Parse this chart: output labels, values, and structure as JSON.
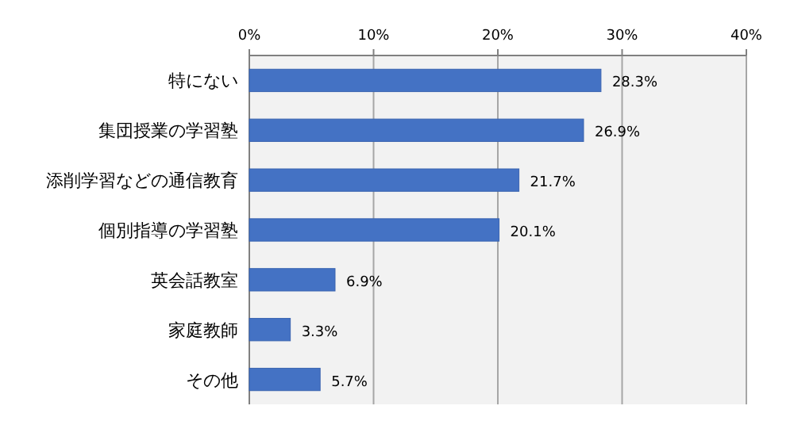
{
  "chart_data": {
    "type": "bar",
    "orientation": "horizontal",
    "categories": [
      "特にない",
      "集団授業の学習塾",
      "添削学習などの通信教育",
      "個別指導の学習塾",
      "英会話教室",
      "家庭教師",
      "その他"
    ],
    "values": [
      28.3,
      26.9,
      21.7,
      20.1,
      6.9,
      3.3,
      5.7
    ],
    "value_labels": [
      "28.3%",
      "26.9%",
      "21.7%",
      "20.1%",
      "6.9%",
      "3.3%",
      "5.7%"
    ],
    "color": "#4472c4",
    "xlim": [
      0,
      40
    ],
    "xticks": [
      {
        "value": 0,
        "label": "0%"
      },
      {
        "value": 10,
        "label": "10%"
      },
      {
        "value": 20,
        "label": "20%"
      },
      {
        "value": 30,
        "label": "30%"
      },
      {
        "value": 40,
        "label": "40%"
      }
    ],
    "grid": "x"
  }
}
